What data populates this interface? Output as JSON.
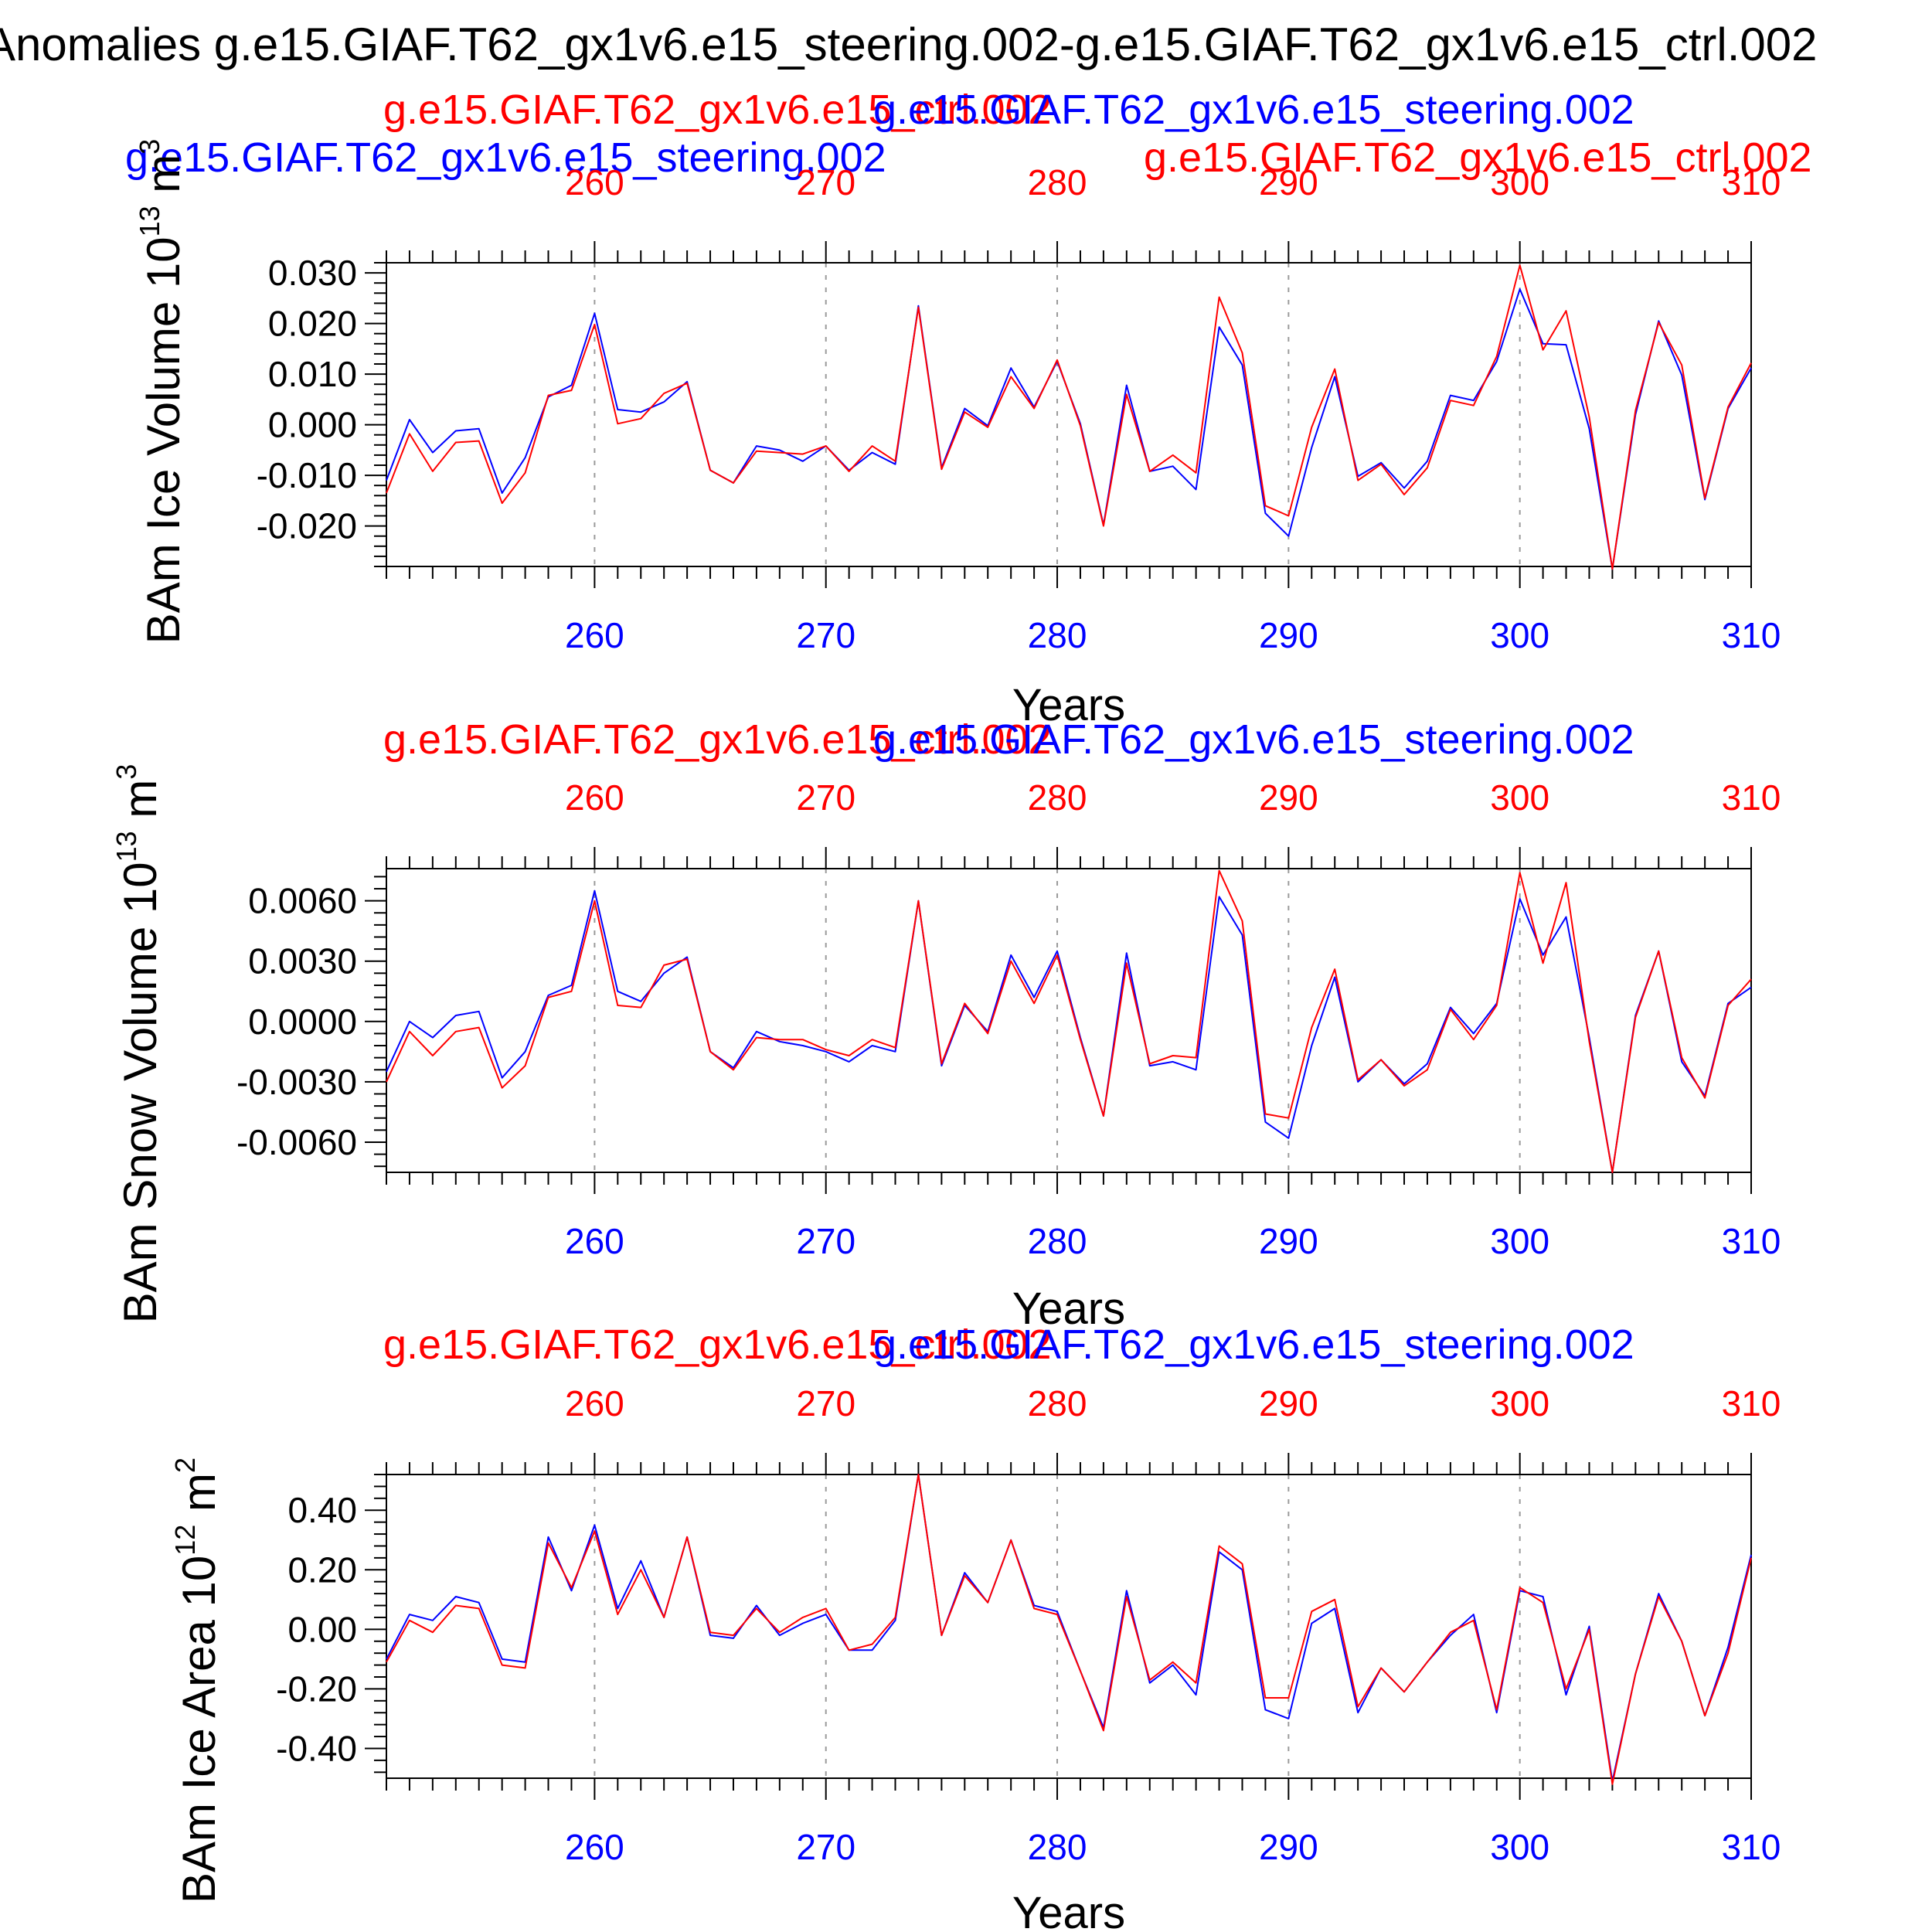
{
  "page_title": "Anomalies g.e15.GIAF.T62_gx1v6.e15_steering.002-g.e15.GIAF.T62_gx1v6.e15_ctrl.002",
  "header_labels": {
    "top_blue": "g.e15.GIAF.T62_gx1v6.e15_steering.002",
    "top_red": "g.e15.GIAF.T62_gx1v6.e15_ctrl.002"
  },
  "colors": {
    "ctrl": "#ff0000",
    "steering": "#0000ff",
    "axis": "#000000",
    "grid": "#9a9a9a"
  },
  "chart_data": [
    {
      "type": "line",
      "ylabel": "BAm Ice Volume 10",
      "ylabel_exp": "13",
      "ylabel_unit": " m",
      "ylabel_unit_exp": "3",
      "xlabel": "Years",
      "top_labels": {
        "red": "g.e15.GIAF.T62_gx1v6.e15_ctrl.002",
        "blue": "g.e15.GIAF.T62_gx1v6.e15_steering.002"
      },
      "xlim": [
        251,
        310
      ],
      "ylim": [
        -0.028,
        0.032
      ],
      "xticks": [
        260,
        270,
        280,
        290,
        300,
        310
      ],
      "xtick_labels": [
        "260",
        "270",
        "280",
        "290",
        "300",
        "310"
      ],
      "yticks": [
        0.03,
        0.02,
        0.01,
        0.0,
        -0.01,
        -0.02
      ],
      "ytick_labels": [
        "0.030",
        "0.020",
        "0.010",
        "0.000",
        "-0.010",
        "-0.020"
      ],
      "x": [
        251,
        252,
        253,
        254,
        255,
        256,
        257,
        258,
        259,
        260,
        261,
        262,
        263,
        264,
        265,
        266,
        267,
        268,
        269,
        270,
        271,
        272,
        273,
        274,
        275,
        276,
        277,
        278,
        279,
        280,
        281,
        282,
        283,
        284,
        285,
        286,
        287,
        288,
        289,
        290,
        291,
        292,
        293,
        294,
        295,
        296,
        297,
        298,
        299,
        300,
        301,
        302,
        303,
        304,
        305,
        306,
        307,
        308,
        309,
        310
      ],
      "series": [
        {
          "name": "g.e15.GIAF.T62_gx1v6.e15_steering.002",
          "color": "blue",
          "values": [
            -0.011,
            0.001,
            -0.0055,
            -0.0012,
            -0.0008,
            -0.0135,
            -0.0065,
            0.0055,
            0.0078,
            0.022,
            0.003,
            0.0025,
            0.0045,
            0.0085,
            -0.009,
            -0.0115,
            -0.0042,
            -0.005,
            -0.0072,
            -0.0042,
            -0.009,
            -0.0055,
            -0.0078,
            0.0235,
            -0.0085,
            0.0032,
            -0.0002,
            0.0112,
            0.0035,
            0.0125,
            0.0002,
            -0.0198,
            0.0078,
            -0.0092,
            -0.0082,
            -0.0128,
            0.0193,
            0.0118,
            -0.0175,
            -0.022,
            -0.0045,
            0.0095,
            -0.0102,
            -0.0075,
            -0.0125,
            -0.0072,
            0.0058,
            0.0048,
            0.0125,
            0.0268,
            0.016,
            0.0158,
            -0.0008,
            -0.0285,
            0.002,
            0.0205,
            0.0098,
            -0.0148,
            0.0032,
            0.0112
          ]
        },
        {
          "name": "g.e15.GIAF.T62_gx1v6.e15_ctrl.002",
          "color": "red",
          "values": [
            -0.0135,
            -0.0018,
            -0.0092,
            -0.0035,
            -0.0032,
            -0.0155,
            -0.0095,
            0.0058,
            0.0068,
            0.0198,
            0.0002,
            0.0012,
            0.0062,
            0.0082,
            -0.009,
            -0.0115,
            -0.0052,
            -0.0055,
            -0.0058,
            -0.0042,
            -0.0092,
            -0.0042,
            -0.0072,
            0.0232,
            -0.0088,
            0.0025,
            -0.0005,
            0.0095,
            0.0032,
            0.0128,
            -0.0002,
            -0.02,
            0.006,
            -0.0092,
            -0.006,
            -0.0095,
            0.0252,
            0.0142,
            -0.016,
            -0.018,
            -0.0005,
            0.011,
            -0.011,
            -0.0078,
            -0.0138,
            -0.0085,
            0.0048,
            0.0038,
            0.0135,
            0.0315,
            0.0148,
            0.0225,
            0.0015,
            -0.0285,
            0.0028,
            0.0202,
            0.0118,
            -0.0145,
            0.0035,
            0.0122
          ]
        }
      ]
    },
    {
      "type": "line",
      "ylabel": "BAm Snow Volume 10",
      "ylabel_exp": "13",
      "ylabel_unit": " m",
      "ylabel_unit_exp": "3",
      "xlabel": "Years",
      "top_labels": {
        "red": "g.e15.GIAF.T62_gx1v6.e15_ctrl.002",
        "blue": "g.e15.GIAF.T62_gx1v6.e15_steering.002"
      },
      "xlim": [
        251,
        310
      ],
      "ylim": [
        -0.0075,
        0.0076
      ],
      "xticks": [
        260,
        270,
        280,
        290,
        300,
        310
      ],
      "xtick_labels": [
        "260",
        "270",
        "280",
        "290",
        "300",
        "310"
      ],
      "yticks": [
        0.006,
        0.003,
        0.0,
        -0.003,
        -0.006
      ],
      "ytick_labels": [
        "0.0060",
        "0.0030",
        "0.0000",
        "-0.0030",
        "-0.0060"
      ],
      "x": [
        251,
        252,
        253,
        254,
        255,
        256,
        257,
        258,
        259,
        260,
        261,
        262,
        263,
        264,
        265,
        266,
        267,
        268,
        269,
        270,
        271,
        272,
        273,
        274,
        275,
        276,
        277,
        278,
        279,
        280,
        281,
        282,
        283,
        284,
        285,
        286,
        287,
        288,
        289,
        290,
        291,
        292,
        293,
        294,
        295,
        296,
        297,
        298,
        299,
        300,
        301,
        302,
        303,
        304,
        305,
        306,
        307,
        308,
        309,
        310
      ],
      "series": [
        {
          "name": "g.e15.GIAF.T62_gx1v6.e15_steering.002",
          "color": "blue",
          "values": [
            -0.0025,
            0.0,
            -0.0008,
            0.0003,
            0.0005,
            -0.0028,
            -0.0015,
            0.0013,
            0.0018,
            0.0065,
            0.0015,
            0.001,
            0.0024,
            0.0032,
            -0.0015,
            -0.0023,
            -0.0005,
            -0.001,
            -0.0012,
            -0.0015,
            -0.002,
            -0.0012,
            -0.0015,
            0.006,
            -0.0022,
            0.0008,
            -0.0005,
            0.0033,
            0.0012,
            0.0035,
            -0.0008,
            -0.0047,
            0.0034,
            -0.0022,
            -0.002,
            -0.0024,
            0.0062,
            0.0043,
            -0.005,
            -0.0058,
            -0.0012,
            0.0022,
            -0.003,
            -0.0019,
            -0.0031,
            -0.0021,
            0.0007,
            -0.0006,
            0.0009,
            0.0061,
            0.0033,
            0.0052,
            -0.0008,
            -0.0075,
            0.0003,
            0.0035,
            -0.002,
            -0.0037,
            0.0009,
            0.0017
          ]
        },
        {
          "name": "g.e15.GIAF.T62_gx1v6.e15_ctrl.002",
          "color": "red",
          "values": [
            -0.003,
            -0.0005,
            -0.0017,
            -0.0005,
            -0.0003,
            -0.0033,
            -0.0022,
            0.0012,
            0.0015,
            0.006,
            0.0008,
            0.0007,
            0.0028,
            0.0031,
            -0.0015,
            -0.0024,
            -0.0008,
            -0.0009,
            -0.0009,
            -0.0014,
            -0.0017,
            -0.0009,
            -0.0013,
            0.006,
            -0.0021,
            0.0009,
            -0.0006,
            0.003,
            0.0009,
            0.0033,
            -0.0009,
            -0.0047,
            0.0029,
            -0.0021,
            -0.0017,
            -0.0018,
            0.0075,
            0.005,
            -0.0046,
            -0.0048,
            -0.0003,
            0.0026,
            -0.0029,
            -0.0019,
            -0.0032,
            -0.0024,
            0.0006,
            -0.0009,
            0.0008,
            0.0074,
            0.0029,
            0.0069,
            -0.001,
            -0.0075,
            0.0002,
            0.0035,
            -0.0018,
            -0.0038,
            0.0008,
            0.0021
          ]
        }
      ]
    },
    {
      "type": "line",
      "ylabel": "BAm Ice Area 10",
      "ylabel_exp": "12",
      "ylabel_unit": " m",
      "ylabel_unit_exp": "2",
      "xlabel": "Years",
      "top_labels": {
        "red": "g.e15.GIAF.T62_gx1v6.e15_ctrl.002",
        "blue": "g.e15.GIAF.T62_gx1v6.e15_steering.002"
      },
      "xlim": [
        251,
        310
      ],
      "ylim": [
        -0.5,
        0.52
      ],
      "xticks": [
        260,
        270,
        280,
        290,
        300,
        310
      ],
      "xtick_labels": [
        "260",
        "270",
        "280",
        "290",
        "300",
        "310"
      ],
      "yticks": [
        0.4,
        0.2,
        0.0,
        -0.2,
        -0.4
      ],
      "ytick_labels": [
        "0.40",
        "0.20",
        "0.00",
        "-0.20",
        "-0.40"
      ],
      "x": [
        251,
        252,
        253,
        254,
        255,
        256,
        257,
        258,
        259,
        260,
        261,
        262,
        263,
        264,
        265,
        266,
        267,
        268,
        269,
        270,
        271,
        272,
        273,
        274,
        275,
        276,
        277,
        278,
        279,
        280,
        281,
        282,
        283,
        284,
        285,
        286,
        287,
        288,
        289,
        290,
        291,
        292,
        293,
        294,
        295,
        296,
        297,
        298,
        299,
        300,
        301,
        302,
        303,
        304,
        305,
        306,
        307,
        308,
        309,
        310
      ],
      "series": [
        {
          "name": "g.e15.GIAF.T62_gx1v6.e15_steering.002",
          "color": "blue",
          "values": [
            -0.1,
            0.05,
            0.03,
            0.11,
            0.09,
            -0.1,
            -0.11,
            0.31,
            0.13,
            0.35,
            0.07,
            0.23,
            0.04,
            0.31,
            -0.02,
            -0.03,
            0.08,
            -0.02,
            0.02,
            0.05,
            -0.07,
            -0.07,
            0.03,
            0.52,
            -0.02,
            0.19,
            0.09,
            0.3,
            0.08,
            0.06,
            -0.14,
            -0.33,
            0.13,
            -0.18,
            -0.12,
            -0.22,
            0.26,
            0.2,
            -0.27,
            -0.3,
            0.02,
            0.07,
            -0.28,
            -0.13,
            -0.21,
            -0.11,
            -0.02,
            0.05,
            -0.28,
            0.13,
            0.11,
            -0.22,
            0.01,
            -0.51,
            -0.15,
            0.12,
            -0.04,
            -0.29,
            -0.06,
            0.25
          ]
        },
        {
          "name": "g.e15.GIAF.T62_gx1v6.e15_ctrl.002",
          "color": "red",
          "values": [
            -0.11,
            0.03,
            -0.01,
            0.08,
            0.07,
            -0.12,
            -0.13,
            0.29,
            0.14,
            0.33,
            0.05,
            0.2,
            0.04,
            0.31,
            -0.01,
            -0.02,
            0.07,
            -0.01,
            0.04,
            0.07,
            -0.07,
            -0.05,
            0.04,
            0.52,
            -0.02,
            0.18,
            0.09,
            0.3,
            0.07,
            0.05,
            -0.14,
            -0.34,
            0.11,
            -0.17,
            -0.11,
            -0.18,
            0.28,
            0.22,
            -0.23,
            -0.23,
            0.06,
            0.1,
            -0.26,
            -0.13,
            -0.21,
            -0.11,
            -0.01,
            0.03,
            -0.27,
            0.14,
            0.09,
            -0.2,
            0.0,
            -0.52,
            -0.15,
            0.11,
            -0.04,
            -0.29,
            -0.08,
            0.24
          ]
        }
      ]
    }
  ]
}
